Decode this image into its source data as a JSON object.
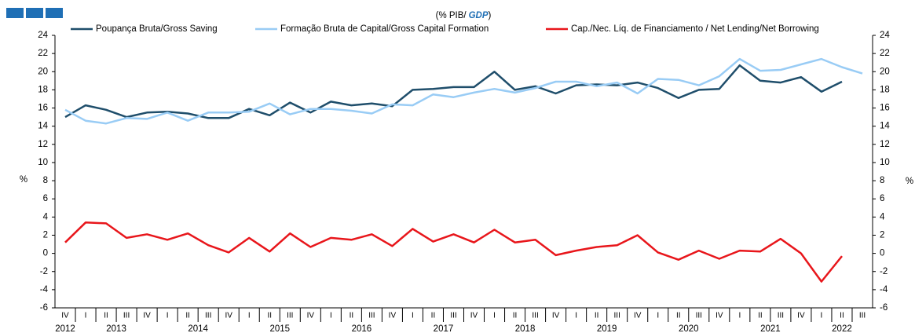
{
  "chart_data": {
    "type": "line",
    "subtitle": [
      "(% PIB/",
      "GDP",
      ")"
    ],
    "ylabel": "%",
    "y2label": "%",
    "categories": [
      "IV",
      "I",
      "II",
      "III",
      "IV",
      "I",
      "II",
      "III",
      "IV",
      "I",
      "II",
      "III",
      "IV",
      "I",
      "II",
      "III",
      "IV",
      "I",
      "II",
      "III",
      "IV",
      "I",
      "II",
      "III",
      "IV",
      "I",
      "II",
      "III",
      "IV",
      "I",
      "II",
      "III",
      "IV",
      "I",
      "II",
      "III",
      "IV",
      "I",
      "II",
      "III"
    ],
    "years": [
      "2012",
      "2013",
      "2014",
      "2015",
      "2016",
      "2017",
      "2018",
      "2019",
      "2020",
      "2021",
      "2022"
    ],
    "series": [
      {
        "name": "Poupança Bruta/Gross Saving",
        "color": "#1f4e6b",
        "values": [
          15.0,
          16.3,
          15.8,
          15.0,
          15.5,
          15.6,
          15.4,
          14.9,
          14.9,
          15.9,
          15.2,
          16.6,
          15.5,
          16.7,
          16.3,
          16.5,
          16.2,
          18.0,
          18.1,
          18.3,
          18.3,
          20.0,
          18.0,
          18.4,
          17.6,
          18.5,
          18.6,
          18.5,
          18.8,
          18.2,
          17.1,
          18.0,
          18.1,
          20.7,
          19.0,
          18.8,
          19.4,
          17.8,
          18.9,
          null
        ]
      },
      {
        "name": "Formação Bruta de Capital/Gross Capital Formation",
        "color": "#99ccf5",
        "values": [
          15.8,
          14.6,
          14.3,
          14.9,
          14.8,
          15.5,
          14.6,
          15.5,
          15.5,
          15.6,
          16.5,
          15.3,
          15.9,
          15.9,
          15.7,
          15.4,
          16.4,
          16.3,
          17.5,
          17.2,
          17.7,
          18.1,
          17.7,
          18.2,
          18.9,
          18.9,
          18.4,
          18.8,
          17.6,
          19.2,
          19.1,
          18.5,
          19.5,
          21.4,
          20.1,
          20.2,
          20.8,
          21.4,
          20.5,
          19.8
        ]
      },
      {
        "name": "Cap./Nec. Líq. de Financiamento / Net Lending/Net Borrowing",
        "color": "#e8161b",
        "values": [
          1.2,
          3.4,
          3.3,
          1.7,
          2.1,
          1.5,
          2.2,
          0.9,
          0.1,
          1.7,
          0.2,
          2.2,
          0.7,
          1.7,
          1.5,
          2.1,
          0.8,
          2.7,
          1.3,
          2.1,
          1.2,
          2.6,
          1.2,
          1.5,
          -0.2,
          0.3,
          0.7,
          0.9,
          2.0,
          0.1,
          -0.7,
          0.3,
          -0.6,
          0.3,
          0.2,
          1.6,
          0.0,
          -3.1,
          -0.3,
          null
        ]
      }
    ],
    "ylim": [
      -6,
      24
    ],
    "yticks": [
      -6,
      -4,
      -2,
      0,
      2,
      4,
      6,
      8,
      10,
      12,
      14,
      16,
      18,
      20,
      22,
      24
    ],
    "y2lim": [
      -6,
      24
    ],
    "y2ticks": [
      -6,
      -4,
      -2,
      0,
      2,
      4,
      6,
      8,
      10,
      12,
      14,
      16,
      18,
      20,
      22,
      24
    ],
    "grid": false
  }
}
